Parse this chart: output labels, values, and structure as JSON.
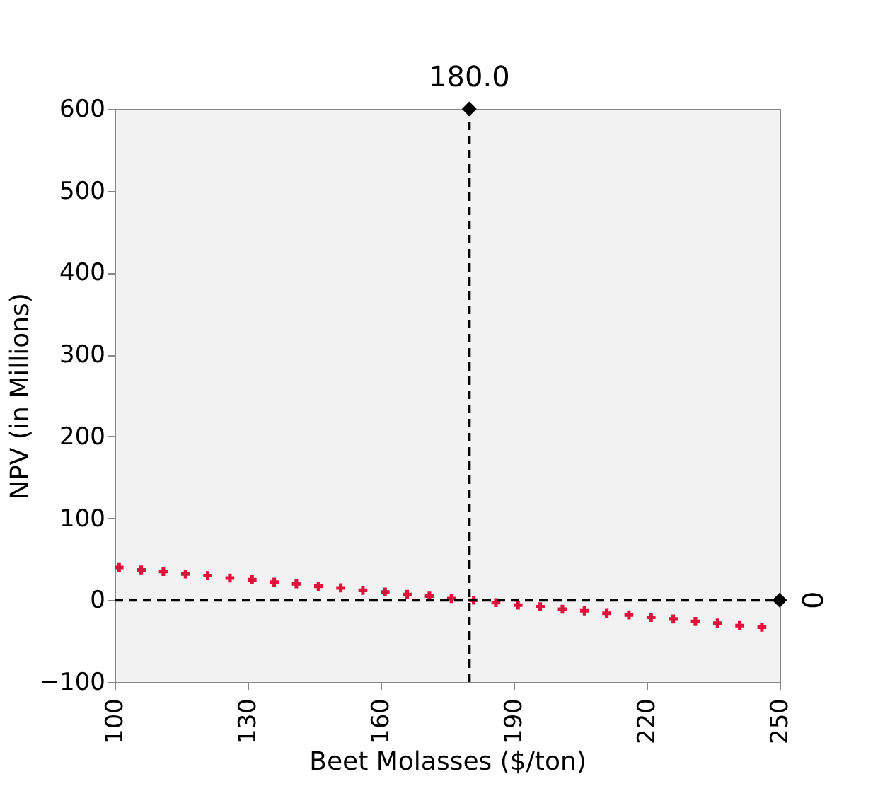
{
  "chart_data": {
    "type": "scatter",
    "xlabel": "Beet Molasses ($/ton)",
    "ylabel": "NPV (in Millions)",
    "xlim": [
      100,
      250
    ],
    "xticks": [
      100,
      130,
      160,
      190,
      220,
      250
    ],
    "ylim": [
      -100,
      600
    ],
    "yticks": [
      -100,
      0,
      100,
      200,
      300,
      400,
      500,
      600
    ],
    "grid": false,
    "marker": "cross",
    "series": [
      {
        "color": "#dc143c",
        "x": [
          101,
          106,
          111,
          116,
          121,
          126,
          131,
          136,
          141,
          146,
          151,
          156,
          161,
          166,
          171,
          176,
          181,
          186,
          191,
          196,
          201,
          206,
          211,
          216,
          221,
          226,
          231,
          236,
          241,
          246
        ],
        "values": [
          40,
          37,
          35,
          32,
          30,
          27,
          25,
          22,
          20,
          17,
          15,
          12,
          10,
          7,
          5,
          2,
          0,
          -3,
          -6,
          -8,
          -11,
          -13,
          -16,
          -18,
          -21,
          -23,
          -26,
          -28,
          -31,
          -33
        ]
      },
      {
        "type": "scatter",
        "marker": "diamond",
        "color": "#000000",
        "x": [
          180,
          250
        ],
        "values": [
          600,
          0
        ]
      }
    ],
    "ref_lines": [
      {
        "axis": "x",
        "value": 180,
        "label": "180.0",
        "color": "#000000",
        "line_style": "dashed"
      },
      {
        "axis": "y",
        "value": 0,
        "label": "0",
        "color": "#000000",
        "line_style": "dashed"
      }
    ]
  }
}
